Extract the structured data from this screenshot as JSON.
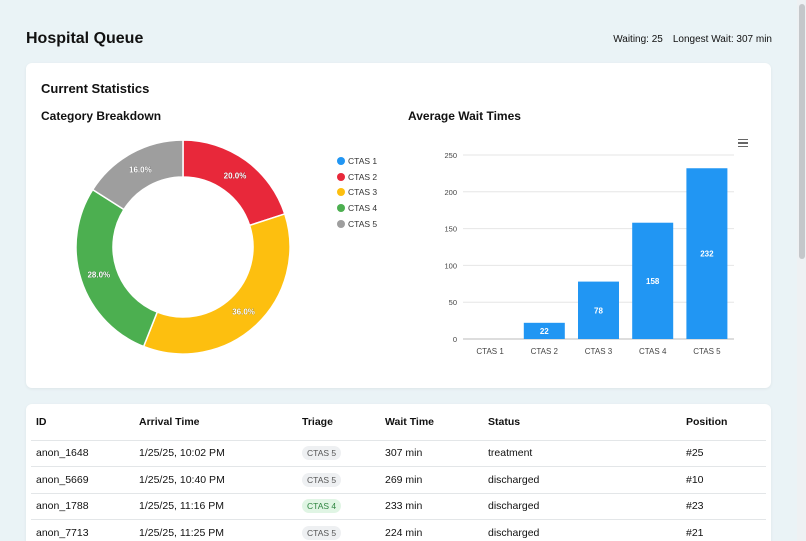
{
  "header": {
    "title": "Hospital Queue",
    "waiting": "Waiting: 25",
    "longest_wait": "Longest Wait: 307 min"
  },
  "stats": {
    "title": "Current Statistics",
    "category_title": "Category Breakdown",
    "wait_title": "Average Wait Times",
    "menu_icon": "hamburger-menu-icon"
  },
  "colors": {
    "ctas1": "#2196f3",
    "ctas2": "#e8283a",
    "ctas3": "#fdbf0f",
    "ctas4": "#4caf50",
    "ctas5": "#9e9e9e",
    "bar": "#2196f3"
  },
  "chart_data": [
    {
      "type": "pie",
      "categories": [
        "CTAS 1",
        "CTAS 2",
        "CTAS 3",
        "CTAS 4",
        "CTAS 5"
      ],
      "values": [
        0,
        20.0,
        36.0,
        28.0,
        16.0
      ],
      "labels": [
        "",
        "20.0%",
        "36.0%",
        "28.0%",
        "16.0%"
      ],
      "legend": "right",
      "donut": true
    },
    {
      "type": "bar",
      "categories": [
        "CTAS 1",
        "CTAS 2",
        "CTAS 3",
        "CTAS 4",
        "CTAS 5"
      ],
      "values": [
        0,
        22,
        78,
        158,
        232
      ],
      "data_labels": [
        "",
        "22",
        "78",
        "158",
        "232"
      ],
      "yticks": [
        "0",
        "50",
        "100",
        "150",
        "200",
        "250"
      ],
      "ylim": [
        0,
        250
      ],
      "grid": true
    }
  ],
  "table": {
    "headers": [
      "ID",
      "Arrival Time",
      "Triage",
      "Wait Time",
      "Status",
      "Position"
    ],
    "rows": [
      {
        "id": "anon_1648",
        "arrival": "1/25/25, 10:02 PM",
        "triage": "CTAS 5",
        "wait": "307 min",
        "status": "treatment",
        "position": "#25"
      },
      {
        "id": "anon_5669",
        "arrival": "1/25/25, 10:40 PM",
        "triage": "CTAS 5",
        "wait": "269 min",
        "status": "discharged",
        "position": "#10"
      },
      {
        "id": "anon_1788",
        "arrival": "1/25/25, 11:16 PM",
        "triage": "CTAS 4",
        "wait": "233 min",
        "status": "discharged",
        "position": "#23"
      },
      {
        "id": "anon_7713",
        "arrival": "1/25/25, 11:25 PM",
        "triage": "CTAS 5",
        "wait": "224 min",
        "status": "discharged",
        "position": "#21"
      }
    ]
  }
}
